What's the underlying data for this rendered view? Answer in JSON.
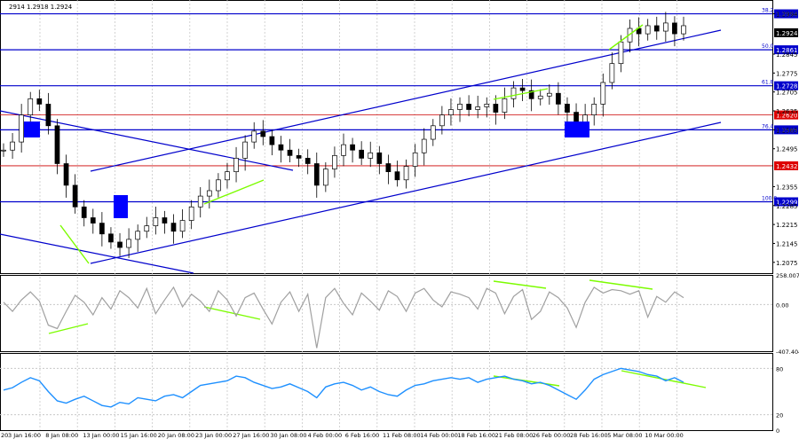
{
  "header": {
    "ohlc_text": "2914 1.2918 1.2924"
  },
  "colors": {
    "candle": "#000000",
    "grid": "#c8c8c8",
    "hline_blue": "#0000cc",
    "hline_red": "#cc0000",
    "channel": "#0000cc",
    "divergence": "#7cfc00",
    "marker": "#0000ff",
    "cci": "#a0a0a0",
    "rsi": "#1e90ff",
    "label_bg": "#0000cc",
    "label_red_bg": "#dd0000"
  },
  "chart_data": [
    {
      "type": "line",
      "name": "price",
      "subtype": "candlestick",
      "ylim": [
        1.2035,
        1.3045
      ],
      "price_ticks": [
        "1.2075",
        "1.2145",
        "1.2215",
        "1.2285",
        "1.2355",
        "1.2495",
        "1.2565",
        "1.2635",
        "1.2705",
        "1.2775",
        "1.2845",
        "1.2924",
        "1.2994"
      ],
      "x_ticks": [
        "3 Jan 16:00",
        "8 Jan 08:00",
        "13 Jan 00:00",
        "15 Jan 16:00",
        "20 Jan 08:00",
        "23 Jan 00:00",
        "27 Jan 16:00",
        "30 Jan 08:00",
        "4 Feb 00:00",
        "6 Feb 16:00",
        "11 Feb 08:00",
        "14 Feb 00:00",
        "18 Feb 16:00",
        "21 Feb 08:00",
        "26 Feb 00:00",
        "28 Feb 16:00",
        "5 Mar 08:00",
        "10 Mar 00:00"
      ],
      "x_first_label": "20",
      "close": [
        1.249,
        1.252,
        1.262,
        1.268,
        1.266,
        1.258,
        1.244,
        1.236,
        1.228,
        1.224,
        1.222,
        1.218,
        1.215,
        1.213,
        1.216,
        1.219,
        1.221,
        1.224,
        1.222,
        1.219,
        1.223,
        1.228,
        1.232,
        1.234,
        1.238,
        1.241,
        1.246,
        1.252,
        1.256,
        1.254,
        1.251,
        1.249,
        1.247,
        1.246,
        1.244,
        1.236,
        1.242,
        1.247,
        1.251,
        1.249,
        1.246,
        1.248,
        1.244,
        1.241,
        1.238,
        1.243,
        1.248,
        1.253,
        1.258,
        1.262,
        1.264,
        1.266,
        1.264,
        1.265,
        1.266,
        1.263,
        1.268,
        1.272,
        1.271,
        1.268,
        1.269,
        1.27,
        1.266,
        1.263,
        1.259,
        1.262,
        1.266,
        1.274,
        1.281,
        1.289,
        1.294,
        1.292,
        1.295,
        1.293,
        1.296,
        1.292,
        1.295
      ],
      "levels": [
        {
          "value": 1.2994,
          "label": "1.2994",
          "fib": "38.2",
          "color": "blue"
        },
        {
          "value": 1.2861,
          "label": "1.2861",
          "fib": "50.0",
          "color": "blue"
        },
        {
          "value": 1.2728,
          "label": "1.2728",
          "fib": "61.8",
          "color": "blue"
        },
        {
          "value": 1.262,
          "label": "1.2620",
          "fib": "",
          "color": "red"
        },
        {
          "value": 1.2565,
          "label": "1.2565",
          "fib": "76.4",
          "color": "blue"
        },
        {
          "value": 1.2432,
          "label": "1.2432",
          "fib": "",
          "color": "red"
        },
        {
          "value": 1.2299,
          "label": "1.2299",
          "fib": "100.0",
          "color": "blue"
        }
      ]
    },
    {
      "type": "line",
      "name": "CCI",
      "ylim": [
        -407.404,
        258.0074
      ],
      "ticks": [
        "258.0074",
        "0.00",
        "-407.404"
      ],
      "values": [
        20,
        -60,
        40,
        110,
        30,
        -180,
        -210,
        -60,
        80,
        20,
        -90,
        60,
        -40,
        120,
        60,
        -30,
        140,
        -80,
        40,
        150,
        -20,
        90,
        30,
        -60,
        120,
        40,
        -100,
        60,
        100,
        -40,
        -170,
        20,
        110,
        -60,
        90,
        -380,
        60,
        140,
        10,
        -90,
        100,
        30,
        -50,
        120,
        70,
        -60,
        100,
        140,
        40,
        -20,
        110,
        90,
        60,
        -40,
        140,
        100,
        -80,
        70,
        130,
        -130,
        -60,
        110,
        60,
        -30,
        -200,
        20,
        150,
        100,
        130,
        120,
        90,
        120,
        -110,
        70,
        20,
        110,
        60
      ]
    },
    {
      "type": "line",
      "name": "RSI",
      "ylim": [
        0,
        100
      ],
      "ticks": [
        "80",
        "0",
        "20"
      ],
      "values": [
        52,
        55,
        62,
        68,
        64,
        50,
        38,
        35,
        40,
        44,
        38,
        32,
        30,
        36,
        34,
        42,
        40,
        38,
        44,
        46,
        42,
        50,
        58,
        60,
        62,
        64,
        70,
        68,
        62,
        58,
        54,
        56,
        60,
        55,
        50,
        42,
        56,
        60,
        62,
        58,
        52,
        56,
        50,
        46,
        44,
        52,
        58,
        60,
        64,
        66,
        68,
        66,
        68,
        62,
        66,
        68,
        70,
        66,
        64,
        60,
        62,
        58,
        52,
        46,
        40,
        52,
        66,
        72,
        76,
        80,
        78,
        76,
        72,
        70,
        64,
        68,
        62
      ]
    }
  ]
}
